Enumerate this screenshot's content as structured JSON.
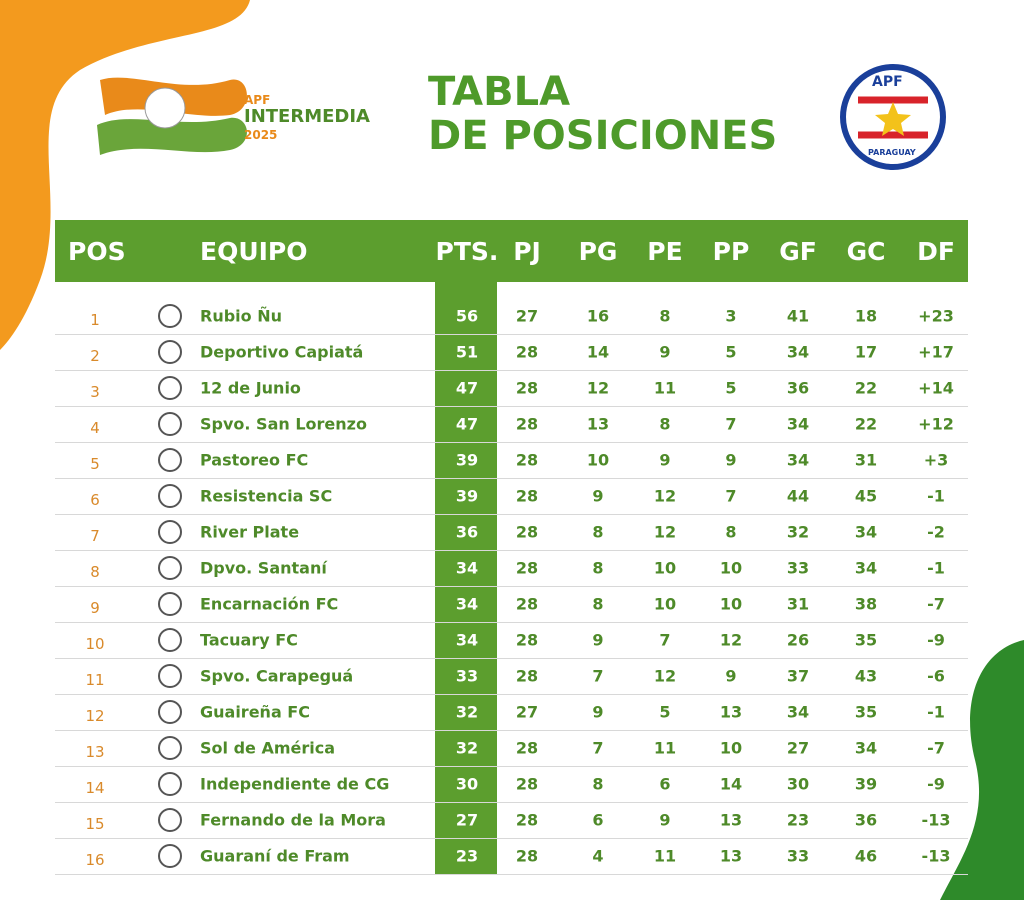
{
  "header": {
    "left_logo": {
      "brand": "APF",
      "name": "INTERMEDIA",
      "year": "2025"
    },
    "title_line1": "TABLA",
    "title_line2": "DE POSICIONES",
    "right_logo": {
      "brand": "APF",
      "country": "PARAGUAY"
    }
  },
  "table": {
    "columns": [
      "POS",
      "EQUIPO",
      "PTS.",
      "PJ",
      "PG",
      "PE",
      "PP",
      "GF",
      "GC",
      "DF"
    ],
    "rows": [
      [
        1,
        "Rubio Ñu",
        56,
        27,
        16,
        8,
        3,
        41,
        18,
        "+23"
      ],
      [
        2,
        "Deportivo Capiatá",
        51,
        28,
        14,
        9,
        5,
        34,
        17,
        "+17"
      ],
      [
        3,
        "12 de Junio",
        47,
        28,
        12,
        11,
        5,
        36,
        22,
        "+14"
      ],
      [
        4,
        "Spvo. San Lorenzo",
        47,
        28,
        13,
        8,
        7,
        34,
        22,
        "+12"
      ],
      [
        5,
        "Pastoreo FC",
        39,
        28,
        10,
        9,
        9,
        34,
        31,
        "+3"
      ],
      [
        6,
        "Resistencia SC",
        39,
        28,
        9,
        12,
        7,
        44,
        45,
        "-1"
      ],
      [
        7,
        "River Plate",
        36,
        28,
        8,
        12,
        8,
        32,
        34,
        "-2"
      ],
      [
        8,
        "Dpvo. Santaní",
        34,
        28,
        8,
        10,
        10,
        33,
        34,
        "-1"
      ],
      [
        9,
        "Encarnación FC",
        34,
        28,
        8,
        10,
        10,
        31,
        38,
        "-7"
      ],
      [
        10,
        "Tacuary FC",
        34,
        28,
        9,
        7,
        12,
        26,
        35,
        "-9"
      ],
      [
        11,
        "Spvo. Carapeguá",
        33,
        28,
        7,
        12,
        9,
        37,
        43,
        "-6"
      ],
      [
        12,
        "Guaireña FC",
        32,
        27,
        9,
        5,
        13,
        34,
        35,
        "-1"
      ],
      [
        13,
        "Sol de América",
        32,
        28,
        7,
        11,
        10,
        27,
        34,
        "-7"
      ],
      [
        14,
        "Independiente de CG",
        30,
        28,
        8,
        6,
        14,
        30,
        39,
        "-9"
      ],
      [
        15,
        "Fernando de la Mora",
        27,
        28,
        6,
        9,
        13,
        23,
        36,
        "-13"
      ],
      [
        16,
        "Guaraní de Fram",
        23,
        28,
        4,
        11,
        13,
        33,
        46,
        "-13"
      ]
    ]
  }
}
